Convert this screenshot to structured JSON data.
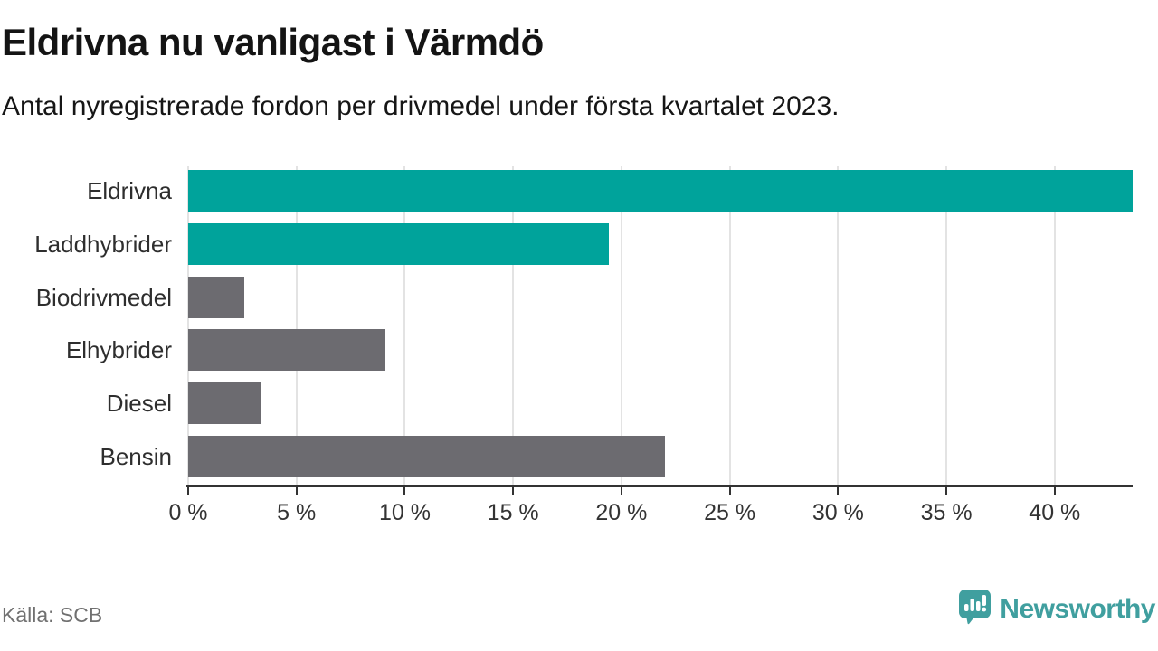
{
  "chart_data": {
    "type": "bar",
    "orientation": "horizontal",
    "title": "Eldrivna nu vanligast i Värmdö",
    "subtitle": "Antal nyregistrerade fordon per drivmedel under första kvartalet 2023.",
    "categories": [
      "Eldrivna",
      "Laddhybrider",
      "Biodrivmedel",
      "Elhybrider",
      "Diesel",
      "Bensin"
    ],
    "values": [
      43.6,
      19.4,
      2.6,
      9.1,
      3.4,
      22.0
    ],
    "unit": "%",
    "bar_colors": [
      "#00a39b",
      "#00a39b",
      "#6c6b70",
      "#6c6b70",
      "#6c6b70",
      "#6c6b70"
    ],
    "xlim": [
      0,
      43.6
    ],
    "x_ticks_percent": [
      0,
      5,
      10,
      15,
      20,
      25,
      30,
      35,
      40
    ],
    "x_tick_labels": [
      "0 %",
      "5 %",
      "10 %",
      "15 %",
      "20 %",
      "25 %",
      "30 %",
      "35 %",
      "40 %"
    ],
    "grid": true,
    "legend": false,
    "source": "Källa: SCB"
  },
  "colors": {
    "highlight_teal": "#00a39b",
    "neutral_gray": "#6c6b70",
    "grid": "#e3e3e3",
    "axis": "#333333",
    "brand_teal": "#409f9f"
  },
  "footer": {
    "source": "Källa: SCB",
    "brand_name": "Newsworthy",
    "brand_logo_icon": "bar-chart-speech-bubble-icon"
  }
}
